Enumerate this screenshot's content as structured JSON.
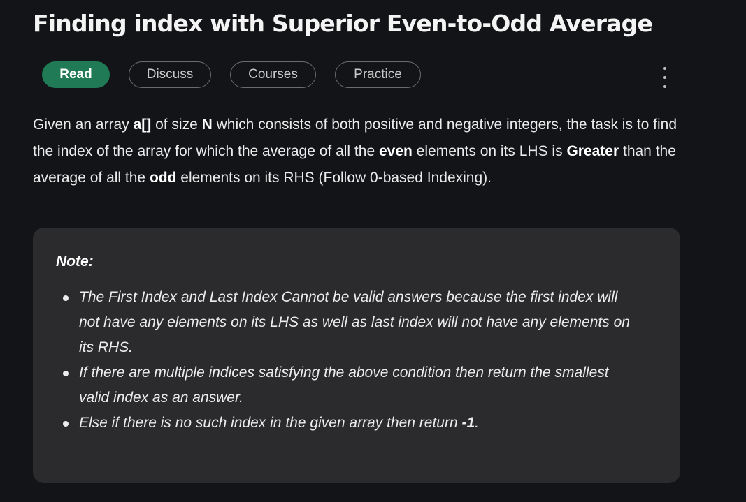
{
  "title": "Finding index with Superior Even-to-Odd Average",
  "tabs": [
    {
      "label": "Read",
      "active": true
    },
    {
      "label": "Discuss",
      "active": false
    },
    {
      "label": "Courses",
      "active": false
    },
    {
      "label": "Practice",
      "active": false
    }
  ],
  "more_icon": "kebab-menu-icon",
  "description": {
    "t1": "Given an array ",
    "b1": "a[]",
    "t2": " of size ",
    "b2": "N",
    "t3": " which consists of both positive and negative integers, the task is to find the index of the array for which the average of all the ",
    "b3": "even",
    "t4": " elements on its LHS is ",
    "b4": "Greater",
    "t5": " than the average of all the ",
    "b5": "odd",
    "t6": " elements on its RHS (Follow 0-based Indexing)."
  },
  "note": {
    "title": "Note:",
    "items": [
      {
        "text": "The First Index and Last Index Cannot be valid answers because the first index will not have any elements on its LHS as well as last index will not have any elements on its RHS.",
        "bold": "",
        "tail": ""
      },
      {
        "text": "If there are multiple indices satisfying the above condition then return the smallest valid index as an answer.",
        "bold": "",
        "tail": ""
      },
      {
        "text": "Else if there is no such index in the given array then return ",
        "bold": "-1",
        "tail": "."
      }
    ]
  },
  "colors": {
    "background": "#131417",
    "accent": "#1f7a55",
    "note_background": "#2b2b2d"
  }
}
